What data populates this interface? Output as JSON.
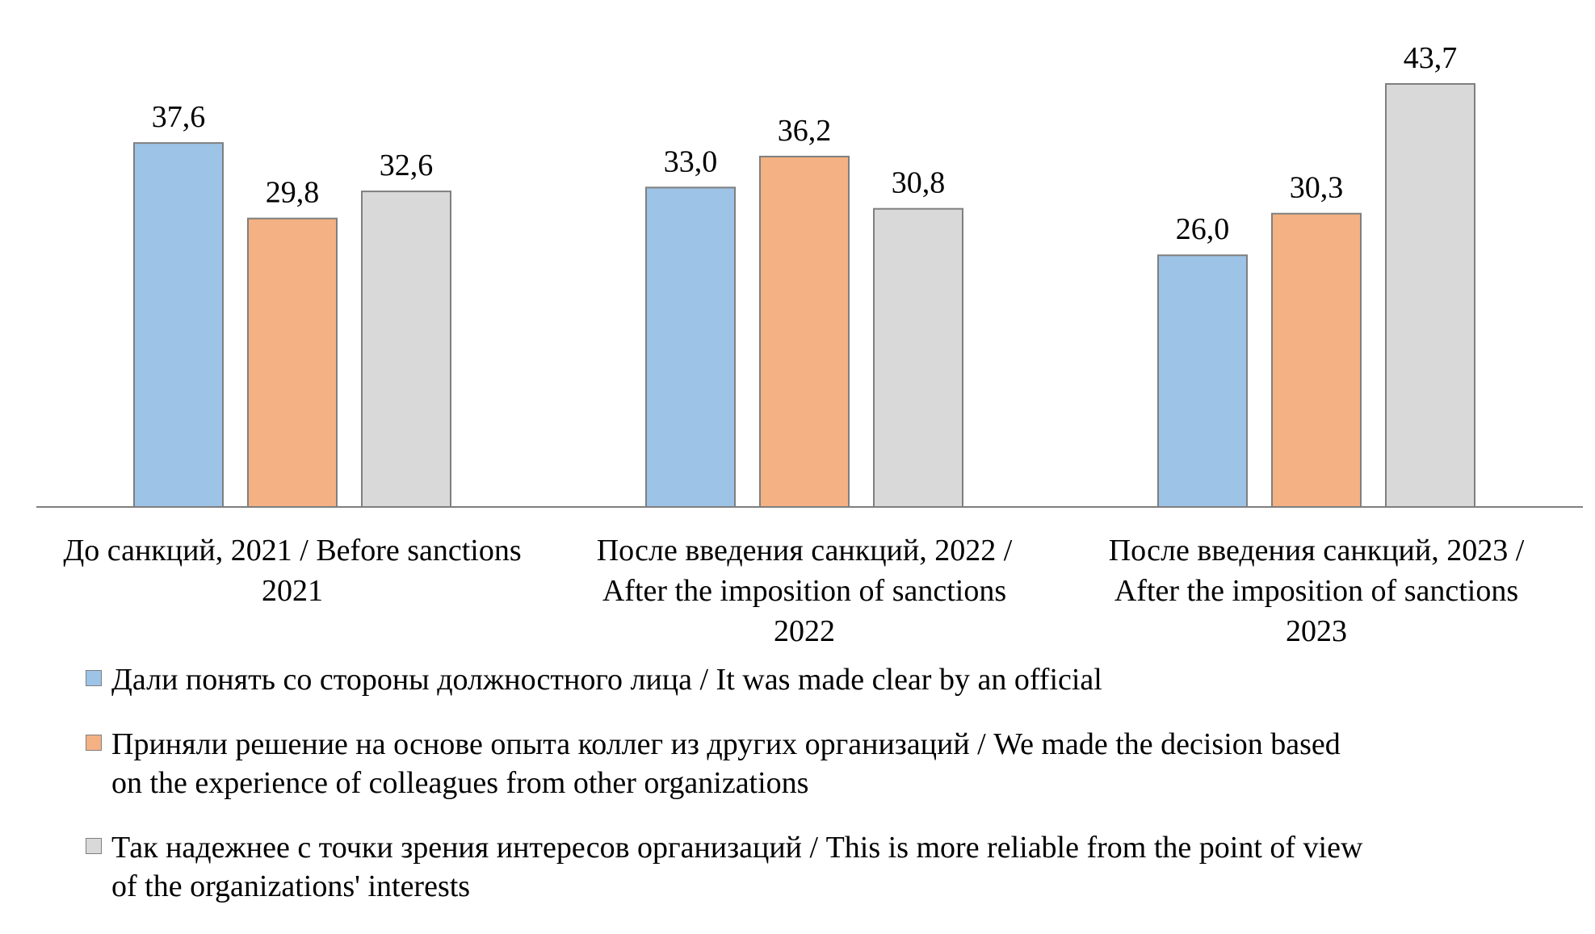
{
  "chart_data": {
    "type": "bar",
    "title": "",
    "xlabel": "",
    "ylabel": "",
    "ylim": [
      0,
      43.7
    ],
    "grid": false,
    "legend_placement": "bottom",
    "categories": [
      [
        "До санкций, 2021 / Before sanctions",
        "2021"
      ],
      [
        "После введения санкций, 2022 /",
        "After the imposition of sanctions",
        "2022"
      ],
      [
        "После введения санкций, 2023 /",
        "After the imposition of sanctions",
        "2023"
      ]
    ],
    "series": [
      {
        "name": "Дали понять со стороны должностного лица / It was made clear by an official",
        "color": "#9dc3e6",
        "values": [
          37.6,
          33.0,
          26.0
        ],
        "labels": [
          "37,6",
          "33,0",
          "26,0"
        ]
      },
      {
        "name": "Приняли решение на основе опыта коллег из других организаций / We made the decision based on the experience of colleagues from other organizations",
        "color": "#f4b183",
        "values": [
          29.8,
          36.2,
          30.3
        ],
        "labels": [
          "29,8",
          "36,2",
          "30,3"
        ]
      },
      {
        "name": "Так надежнее с точки зрения интересов организаций / This is more reliable from the point of view of the organizations' interests",
        "color": "#d9d9d9",
        "values": [
          32.6,
          30.8,
          43.7
        ],
        "labels": [
          "32,6",
          "30,8",
          "43,7"
        ]
      }
    ]
  },
  "legend": [
    {
      "lines": [
        "Дали понять со стороны должностного лица / It was made clear by an official"
      ]
    },
    {
      "lines": [
        "Приняли решение на основе опыта коллег из других организаций / We made the decision based",
        "on the experience of colleagues from other organizations"
      ]
    },
    {
      "lines": [
        "Так надежнее с точки зрения интересов организаций / This is more reliable from the point of view",
        "of the organizations' interests"
      ]
    }
  ],
  "style": {
    "bar_stroke": "#7f7f7f",
    "axis_color": "#7f7f7f"
  }
}
